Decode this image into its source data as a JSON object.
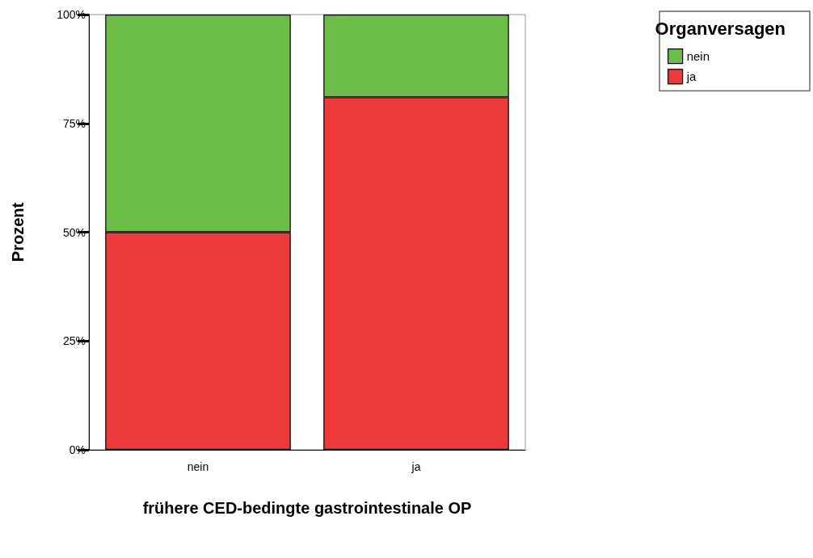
{
  "chart_data": {
    "type": "bar",
    "stacked": true,
    "xlabel": "frühere CED-bedingte gastrointestinale OP",
    "ylabel": "Prozent",
    "legend_title": "Organversagen",
    "legend": "top right",
    "grid": false,
    "categories": [
      "nein",
      "ja"
    ],
    "series": [
      {
        "name": "ja",
        "color": "#ee3a3a",
        "values": [
          50,
          81
        ]
      },
      {
        "name": "nein",
        "color": "#6cbd47",
        "values": [
          50,
          19
        ]
      }
    ],
    "ylim": [
      0,
      100
    ],
    "yticks": [
      {
        "value": 0,
        "label": "0%"
      },
      {
        "value": 25,
        "label": "25%"
      },
      {
        "value": 50,
        "label": "50%"
      },
      {
        "value": 75,
        "label": "75%"
      },
      {
        "value": 100,
        "label": "100%"
      }
    ]
  }
}
